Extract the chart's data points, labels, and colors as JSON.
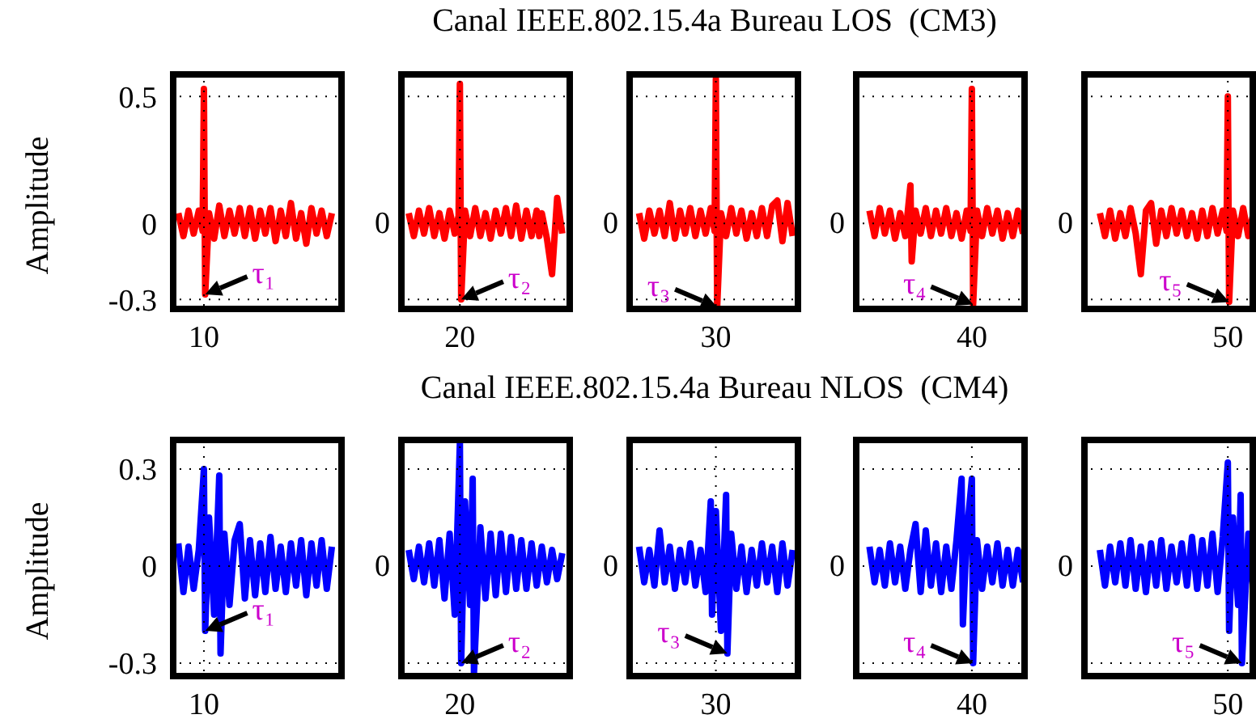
{
  "chart_data": [
    {
      "type": "line",
      "title": "Canal IEEE.802.15.4a Bureau LOS  (CM3)",
      "ylabel": "Amplitude",
      "marker": "none",
      "grid": true,
      "xlim": [
        8.8,
        51.1
      ],
      "xticks": [
        10,
        20,
        30,
        40,
        50
      ],
      "ylim": [
        -0.35,
        0.6
      ],
      "yticks": [
        0.5,
        0,
        -0.3
      ],
      "annotations": [
        "0",
        "0",
        "0",
        "0",
        {
          "text": "τ₁",
          "x": 10.05,
          "y": -0.28
        },
        {
          "text": "τ₂",
          "x": 20.05,
          "y": -0.3
        },
        {
          "text": "τ₃",
          "x": 30.05,
          "y": -0.33
        },
        {
          "text": "τ₄",
          "x": 40.05,
          "y": -0.32
        },
        {
          "text": "τ₅",
          "x": 50.05,
          "y": -0.31
        }
      ],
      "series": [
        {
          "color": "#ff0000",
          "x": [
            9,
            9.2,
            9.4,
            9.6,
            9.8,
            9.95,
            10,
            10.05,
            10.2,
            10.4,
            10.6,
            10.8,
            11,
            11.2,
            11.4,
            11.6,
            11.8,
            12,
            12.2,
            12.4,
            12.6,
            12.8,
            13,
            13.2,
            13.4,
            13.6,
            13.8,
            14,
            14.2,
            14.4,
            14.6,
            14.8,
            15,
            16.5,
            18,
            18.2,
            18.4,
            18.6,
            18.8,
            19,
            19.2,
            19.4,
            19.6,
            19.8,
            19.95,
            20,
            20.05,
            20.2,
            20.4,
            20.6,
            20.8,
            21,
            21.2,
            21.4,
            21.6,
            21.8,
            22,
            22.2,
            22.4,
            22.6,
            22.8,
            23,
            23.1,
            23.2,
            23.4,
            23.6,
            23.8,
            24,
            25.5,
            27,
            27.2,
            27.4,
            27.6,
            27.8,
            28,
            28.2,
            28.4,
            28.6,
            28.8,
            29,
            29.2,
            29.4,
            29.6,
            29.8,
            29.95,
            30,
            30.05,
            30.2,
            30.4,
            30.6,
            30.8,
            31,
            31.2,
            31.4,
            31.6,
            31.8,
            32,
            32.2,
            32.4,
            32.6,
            32.8,
            33,
            34.5,
            36,
            36.2,
            36.4,
            36.6,
            36.8,
            37,
            37.2,
            37.4,
            37.6,
            37.65,
            37.8,
            38,
            38.2,
            38.4,
            38.6,
            38.8,
            39,
            39.2,
            39.4,
            39.6,
            39.8,
            39.95,
            40,
            40.05,
            40.2,
            40.4,
            40.6,
            40.8,
            41,
            41.2,
            41.4,
            41.6,
            41.8,
            42,
            43.5,
            45,
            45.2,
            45.4,
            45.6,
            45.8,
            46,
            46.2,
            46.4,
            46.6,
            46.8,
            47,
            47.2,
            47.4,
            47.6,
            47.8,
            48,
            48.2,
            48.4,
            48.6,
            48.8,
            49,
            49.2,
            49.4,
            49.6,
            49.8,
            49.95,
            50,
            50.05,
            50.2,
            50.4,
            50.6,
            50.8,
            51
          ],
          "values": [
            0.04,
            -0.05,
            0.05,
            -0.04,
            0.05,
            -0.03,
            0.53,
            -0.28,
            0.04,
            -0.06,
            0.07,
            -0.05,
            0.05,
            -0.04,
            0.06,
            -0.05,
            0.06,
            -0.06,
            0.05,
            -0.04,
            0.06,
            -0.07,
            0.05,
            -0.05,
            0.08,
            -0.06,
            0.04,
            -0.08,
            0.06,
            -0.04,
            0.05,
            -0.05,
            0.04,
            null,
            0.04,
            -0.05,
            0.05,
            -0.04,
            0.06,
            -0.05,
            0.04,
            -0.06,
            0.05,
            -0.04,
            0.03,
            0.55,
            -0.3,
            0.05,
            -0.05,
            0.06,
            -0.05,
            0.04,
            -0.06,
            0.05,
            -0.04,
            0.06,
            -0.05,
            0.07,
            -0.06,
            0.05,
            -0.05,
            0.05,
            -0.05,
            0.04,
            -0.06,
            -0.2,
            0.1,
            -0.04,
            null,
            0.04,
            -0.06,
            0.05,
            -0.04,
            0.05,
            -0.05,
            0.08,
            -0.06,
            0.05,
            -0.04,
            0.06,
            -0.05,
            0.05,
            -0.04,
            0.06,
            -0.03,
            0.57,
            -0.33,
            0.04,
            -0.05,
            0.06,
            -0.04,
            0.05,
            -0.06,
            0.04,
            -0.05,
            0.06,
            -0.05,
            0.07,
            0.09,
            -0.07,
            0.08,
            -0.05,
            null,
            0.05,
            -0.05,
            0.06,
            -0.04,
            0.05,
            -0.06,
            0.04,
            -0.05,
            0.15,
            -0.15,
            0.05,
            -0.04,
            0.06,
            -0.05,
            0.05,
            -0.04,
            0.06,
            -0.05,
            0.04,
            -0.06,
            0.05,
            -0.03,
            0.53,
            -0.32,
            0.05,
            -0.05,
            0.06,
            -0.04,
            0.05,
            -0.06,
            0.04,
            -0.05,
            0.05,
            -0.04,
            null,
            0.04,
            -0.05,
            0.05,
            -0.06,
            0.04,
            -0.05,
            0.06,
            -0.04,
            -0.2,
            0.05,
            0.08,
            -0.08,
            0.05,
            -0.05,
            0.06,
            -0.04,
            0.05,
            -0.05,
            0.04,
            -0.06,
            0.05,
            -0.05,
            0.06,
            -0.04,
            0.05,
            -0.03,
            0.5,
            -0.31,
            0.05,
            -0.05,
            0.06,
            -0.05,
            0.04
          ]
        }
      ]
    },
    {
      "type": "line",
      "title": "Canal IEEE.802.15.4a Bureau NLOS  (CM4)",
      "ylabel": "Amplitude",
      "marker": "none",
      "grid": true,
      "xlim": [
        8.8,
        51.1
      ],
      "xticks": [
        10,
        20,
        30,
        40,
        50
      ],
      "ylim": [
        -0.35,
        0.4
      ],
      "yticks": [
        0.3,
        0,
        -0.3
      ],
      "annotations": [
        "0",
        "0",
        "0",
        "0",
        {
          "text": "τ₁",
          "x": 10.05,
          "y": -0.2
        },
        {
          "text": "τ₂",
          "x": 20.05,
          "y": -0.3
        },
        {
          "text": "τ₃",
          "x": 30.45,
          "y": -0.27
        },
        {
          "text": "τ₄",
          "x": 40.05,
          "y": -0.3
        },
        {
          "text": "τ₅",
          "x": 50.55,
          "y": -0.3
        }
      ],
      "series": [
        {
          "color": "#0000ff",
          "x": [
            9,
            9.2,
            9.4,
            9.6,
            9.8,
            10,
            10.05,
            10.2,
            10.4,
            10.6,
            10.65,
            10.8,
            11,
            11.2,
            11.4,
            11.6,
            11.8,
            12,
            12.2,
            12.4,
            12.6,
            12.8,
            13,
            13.2,
            13.4,
            13.6,
            13.8,
            14,
            14.2,
            14.4,
            14.6,
            14.8,
            15,
            16.5,
            18,
            18.2,
            18.4,
            18.6,
            18.8,
            19,
            19.2,
            19.4,
            19.6,
            19.8,
            20,
            20.05,
            20.2,
            20.4,
            20.5,
            20.55,
            20.8,
            21,
            21.2,
            21.4,
            21.6,
            21.8,
            22,
            22.2,
            22.4,
            22.6,
            22.8,
            23,
            23.2,
            23.4,
            23.6,
            23.8,
            24,
            25.5,
            27,
            27.2,
            27.4,
            27.6,
            27.8,
            28,
            28.2,
            28.4,
            28.6,
            28.8,
            29,
            29.2,
            29.4,
            29.6,
            29.8,
            29.85,
            30,
            30.2,
            30.4,
            30.45,
            30.6,
            30.8,
            31,
            31.2,
            31.4,
            31.6,
            31.8,
            32,
            32.2,
            32.4,
            32.6,
            32.8,
            33,
            34.5,
            36,
            36.2,
            36.4,
            36.6,
            36.8,
            37,
            37.2,
            37.4,
            37.6,
            37.8,
            38,
            38.2,
            38.4,
            38.6,
            38.8,
            39,
            39.2,
            39.4,
            39.6,
            39.65,
            39.8,
            40,
            40.05,
            40.2,
            40.4,
            40.6,
            40.8,
            41,
            41.2,
            41.4,
            41.6,
            41.8,
            42,
            43.5,
            45,
            45.2,
            45.4,
            45.6,
            45.8,
            46,
            46.2,
            46.4,
            46.6,
            46.8,
            47,
            47.2,
            47.4,
            47.6,
            47.8,
            48,
            48.2,
            48.4,
            48.6,
            48.8,
            49,
            49.2,
            49.4,
            49.6,
            49.8,
            50,
            50.05,
            50.2,
            50.4,
            50.5,
            50.55,
            50.8,
            51
          ],
          "values": [
            0.07,
            -0.08,
            0.06,
            -0.07,
            0.05,
            0.3,
            -0.2,
            0.15,
            -0.15,
            0.28,
            -0.27,
            0.1,
            -0.12,
            0.08,
            0.13,
            -0.1,
            0.08,
            -0.09,
            0.07,
            -0.08,
            0.09,
            -0.07,
            0.06,
            -0.08,
            0.07,
            -0.06,
            0.08,
            -0.09,
            0.07,
            -0.06,
            0.08,
            -0.07,
            0.06,
            null,
            0.05,
            -0.04,
            0.06,
            -0.05,
            0.07,
            -0.06,
            0.08,
            -0.1,
            0.1,
            -0.15,
            0.38,
            -0.3,
            0.2,
            -0.12,
            0.27,
            -0.33,
            0.12,
            -0.1,
            0.1,
            -0.09,
            0.1,
            -0.08,
            0.09,
            -0.07,
            0.08,
            -0.07,
            0.07,
            -0.06,
            0.06,
            -0.05,
            0.05,
            -0.04,
            0.04,
            null,
            0.06,
            -0.05,
            0.05,
            -0.06,
            0.11,
            -0.05,
            0.06,
            -0.07,
            0.05,
            -0.05,
            0.07,
            -0.06,
            0.05,
            -0.08,
            0.2,
            -0.15,
            0.17,
            -0.2,
            0.22,
            -0.27,
            0.1,
            -0.07,
            0.06,
            -0.08,
            0.05,
            -0.06,
            0.07,
            -0.05,
            0.06,
            -0.08,
            0.07,
            -0.06,
            0.05,
            null,
            0.06,
            -0.05,
            0.05,
            -0.06,
            0.07,
            -0.05,
            0.06,
            -0.07,
            0.05,
            0.13,
            -0.08,
            0.11,
            -0.06,
            0.07,
            -0.08,
            0.06,
            -0.07,
            0.08,
            0.27,
            -0.18,
            0.1,
            0.27,
            -0.3,
            0.08,
            -0.07,
            0.06,
            -0.05,
            0.07,
            -0.06,
            0.05,
            -0.06,
            0.05,
            -0.05,
            null,
            0.05,
            -0.06,
            0.06,
            -0.05,
            0.07,
            -0.06,
            0.08,
            -0.07,
            0.06,
            -0.08,
            0.07,
            -0.06,
            0.08,
            -0.07,
            0.06,
            -0.05,
            0.07,
            -0.06,
            0.09,
            -0.07,
            0.08,
            -0.06,
            0.1,
            -0.08,
            0.09,
            0.32,
            -0.2,
            0.15,
            -0.12,
            0.22,
            -0.3,
            0.1,
            -0.08
          ]
        }
      ]
    }
  ]
}
